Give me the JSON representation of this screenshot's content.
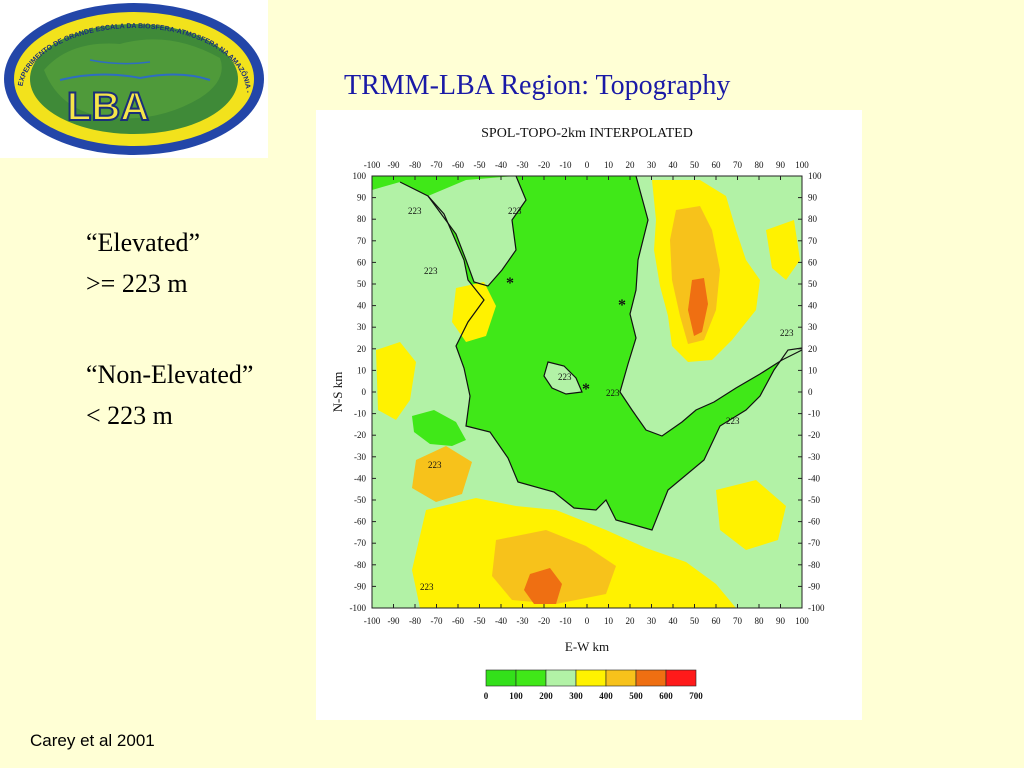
{
  "slide": {
    "title": "TRMM-LBA Region: Topography",
    "elevated_title": "“Elevated”",
    "elevated_value": ">= 223 m",
    "nonelevated_title": "“Non-Elevated”",
    "nonelevated_value": "< 223 m",
    "citation": "Carey et al 2001"
  },
  "logo": {
    "text": "LBA",
    "ring_text": "EXPERIMENTO DE GRANDE ESCALA DA BIOSFERA-ATMOSFERA NA AMAZÔNIA - LBA"
  },
  "map": {
    "title": "SPOL-TOPO-2km INTERPOLATED",
    "xlabel": "E-W km",
    "ylabel": "N-S km",
    "x_ticks": [
      "-100",
      "-90",
      "-80",
      "-70",
      "-60",
      "-50",
      "-40",
      "-30",
      "-20",
      "-10",
      "0",
      "10",
      "20",
      "30",
      "40",
      "50",
      "60",
      "70",
      "80",
      "90",
      "100"
    ],
    "y_ticks": [
      "100",
      "90",
      "80",
      "70",
      "60",
      "50",
      "40",
      "30",
      "20",
      "10",
      "0",
      "-10",
      "-20",
      "-30",
      "-40",
      "-50",
      "-60",
      "-70",
      "-80",
      "-90",
      "-100"
    ],
    "contour_label": "223",
    "colorbar": {
      "ticks": [
        "0",
        "100",
        "200",
        "300",
        "400",
        "500",
        "600",
        "700"
      ],
      "colors": [
        "#5FBF1F",
        "#33E01A",
        "#40E818",
        "#B2F2A6",
        "#FFF200",
        "#F7C21B",
        "#EF6F12",
        "#FF1A1A"
      ]
    }
  }
}
